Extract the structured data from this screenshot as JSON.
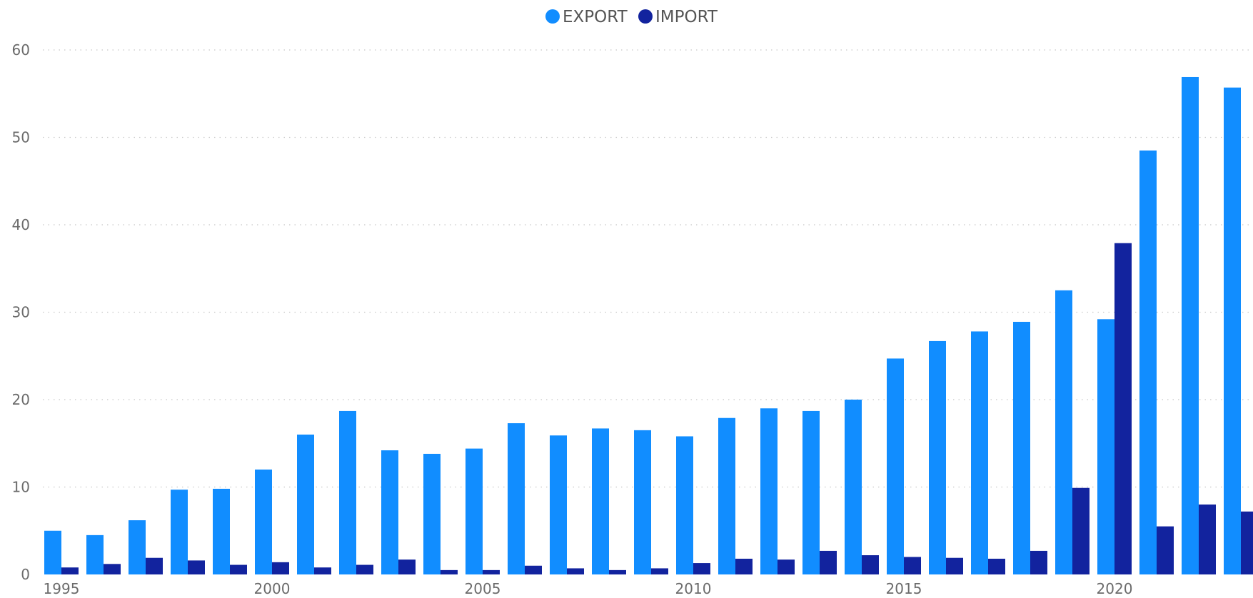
{
  "chart_data": {
    "type": "bar",
    "title": "",
    "xlabel": "",
    "ylabel": "",
    "ylim": [
      0,
      60
    ],
    "y_ticks": [
      0,
      10,
      20,
      30,
      40,
      50,
      60
    ],
    "x_tick_labels": [
      "1995",
      "2000",
      "2005",
      "2010",
      "2015",
      "2020"
    ],
    "grid": true,
    "legend_position": "top-center",
    "categories": [
      1995,
      1996,
      1997,
      1998,
      1999,
      2000,
      2001,
      2002,
      2003,
      2004,
      2005,
      2006,
      2007,
      2008,
      2009,
      2010,
      2011,
      2012,
      2013,
      2014,
      2015,
      2016,
      2017,
      2018,
      2019,
      2020,
      2021,
      2022,
      2023
    ],
    "series": [
      {
        "name": "EXPORT",
        "color": "#118DFF",
        "values": [
          5.0,
          4.5,
          6.2,
          9.7,
          9.8,
          12.0,
          16.0,
          18.7,
          14.2,
          13.8,
          14.4,
          17.3,
          15.9,
          16.7,
          16.5,
          15.8,
          17.9,
          19.0,
          18.7,
          20.0,
          24.7,
          26.7,
          27.8,
          28.9,
          32.5,
          29.2,
          48.5,
          56.9,
          55.7
        ]
      },
      {
        "name": "IMPORT",
        "color": "#12239E",
        "values": [
          0.8,
          1.2,
          1.9,
          1.6,
          1.1,
          1.4,
          0.8,
          1.1,
          1.7,
          0.5,
          0.5,
          1.0,
          0.7,
          0.5,
          0.7,
          1.3,
          1.8,
          1.7,
          2.7,
          2.2,
          2.0,
          1.9,
          1.8,
          2.7,
          9.9,
          37.9,
          5.5,
          8.0,
          7.2
        ]
      }
    ]
  }
}
